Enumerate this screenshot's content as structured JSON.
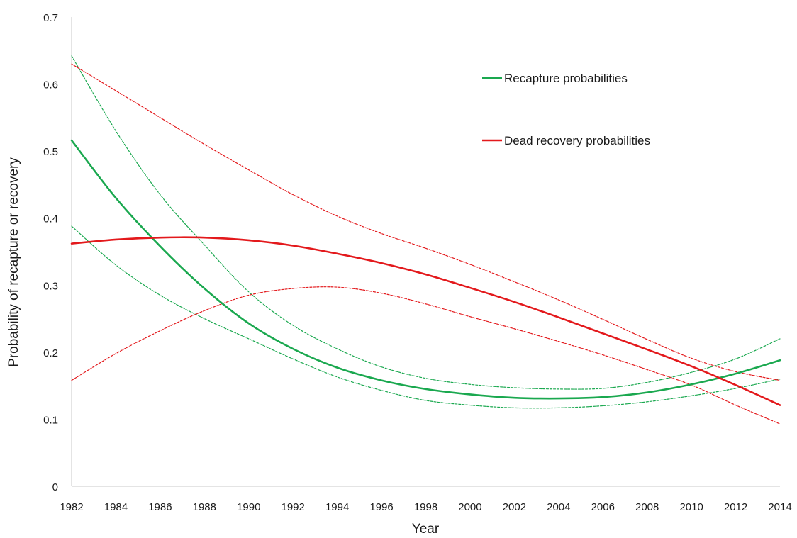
{
  "chart_data": {
    "type": "line",
    "xlabel": "Year",
    "ylabel": "Probability of recapture or recovery",
    "xlim": [
      1982,
      2014
    ],
    "ylim": [
      0,
      0.7
    ],
    "x_ticks": [
      "1982",
      "1984",
      "1986",
      "1988",
      "1990",
      "1992",
      "1994",
      "1996",
      "1998",
      "2000",
      "2002",
      "2004",
      "2006",
      "2008",
      "2010",
      "2012",
      "2014"
    ],
    "y_ticks": [
      "0",
      "0.1",
      "0.2",
      "0.3",
      "0.4",
      "0.5",
      "0.6",
      "0.7"
    ],
    "grid": false,
    "legend_position": "top-right",
    "colors": {
      "recapture": "#1aa84f",
      "dead_recovery": "#e3191c",
      "axis": "#c8c8c8"
    },
    "x": [
      1982,
      1984,
      1986,
      1988,
      1990,
      1992,
      1994,
      1996,
      1998,
      2000,
      2002,
      2004,
      2006,
      2008,
      2010,
      2012,
      2014
    ],
    "series": [
      {
        "name": "Recapture probabilities",
        "color_key": "recapture",
        "style": "solid",
        "values": [
          0.516,
          0.43,
          0.358,
          0.295,
          0.243,
          0.205,
          0.177,
          0.158,
          0.145,
          0.137,
          0.132,
          0.131,
          0.133,
          0.14,
          0.152,
          0.168,
          0.188
        ]
      },
      {
        "color_key": "recapture",
        "style": "dashed",
        "values": [
          0.642,
          0.53,
          0.435,
          0.36,
          0.29,
          0.24,
          0.205,
          0.178,
          0.161,
          0.152,
          0.147,
          0.145,
          0.146,
          0.155,
          0.17,
          0.19,
          0.22
        ]
      },
      {
        "color_key": "recapture",
        "style": "dashed",
        "values": [
          0.388,
          0.33,
          0.285,
          0.25,
          0.22,
          0.19,
          0.163,
          0.143,
          0.128,
          0.121,
          0.117,
          0.117,
          0.12,
          0.126,
          0.135,
          0.146,
          0.16
        ]
      },
      {
        "name": "Dead recovery probabilities",
        "color_key": "dead_recovery",
        "style": "solid",
        "values": [
          0.362,
          0.368,
          0.371,
          0.371,
          0.367,
          0.359,
          0.347,
          0.333,
          0.316,
          0.296,
          0.275,
          0.252,
          0.228,
          0.204,
          0.179,
          0.151,
          0.121
        ]
      },
      {
        "color_key": "dead_recovery",
        "style": "dashed",
        "values": [
          0.63,
          0.59,
          0.55,
          0.51,
          0.472,
          0.435,
          0.403,
          0.377,
          0.355,
          0.331,
          0.305,
          0.278,
          0.249,
          0.219,
          0.191,
          0.171,
          0.158
        ]
      },
      {
        "color_key": "dead_recovery",
        "style": "dashed",
        "values": [
          0.158,
          0.198,
          0.232,
          0.262,
          0.285,
          0.295,
          0.297,
          0.288,
          0.272,
          0.253,
          0.235,
          0.216,
          0.196,
          0.174,
          0.151,
          0.121,
          0.093
        ]
      }
    ],
    "legend": [
      {
        "label": "Recapture probabilities",
        "color_key": "recapture"
      },
      {
        "label": "Dead recovery probabilities",
        "color_key": "dead_recovery"
      }
    ]
  }
}
